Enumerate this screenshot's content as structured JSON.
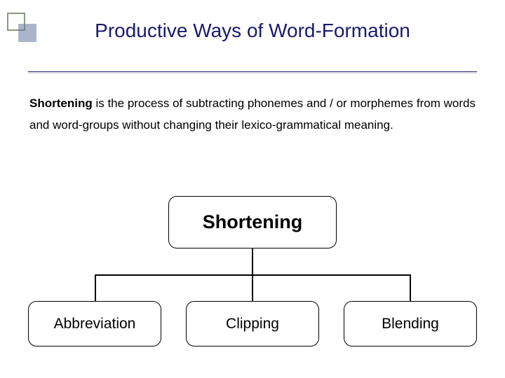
{
  "colors": {
    "title_text": "#1a1a6e",
    "bullet_border": "#8a9880",
    "bullet_fill": "rgba(100,120,160,0.55)",
    "underline": "#1a1a6e",
    "node_border": "#000000",
    "node_text": "#000000"
  },
  "title": "Productive Ways of Word-Formation",
  "paragraph": {
    "bold_term": "Shortening",
    "rest": " is the process of subtracting phonemes and / or morphemes from words and word-groups without changing their lexico-grammatical meaning."
  },
  "diagram": {
    "type": "tree",
    "root": "Shortening",
    "children": [
      "Abbreviation",
      "Clipping",
      "Blending"
    ]
  }
}
